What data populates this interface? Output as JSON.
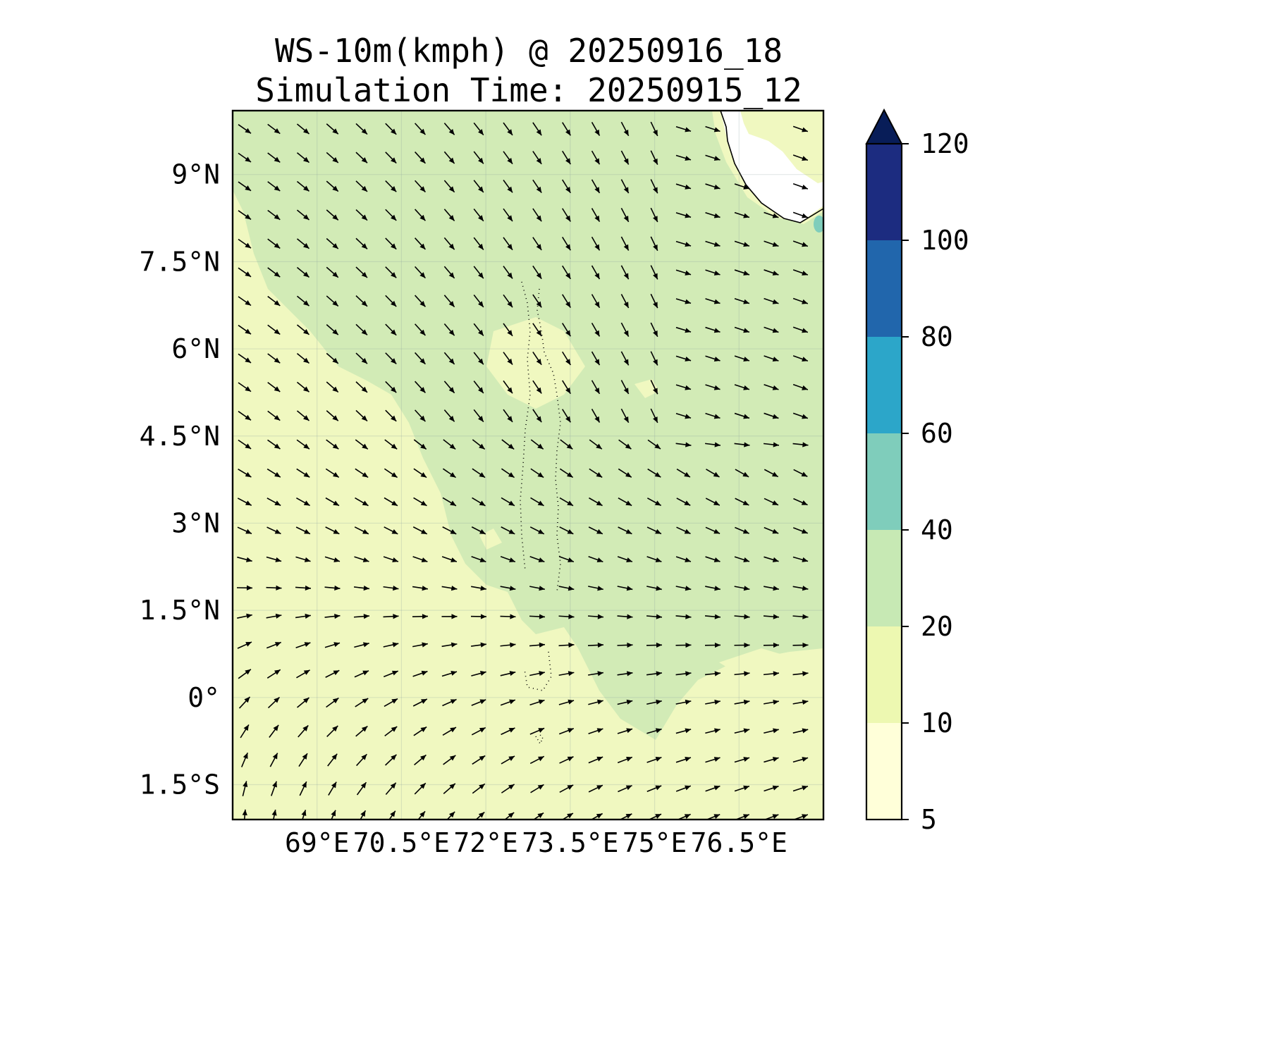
{
  "figure": {
    "title_line1": "WS-10m(kmph) @ 20250916_18",
    "title_line2": "Simulation Time: 20250915_12"
  },
  "map": {
    "lon_range": [
      67.5,
      78.0
    ],
    "lat_range": [
      -2.1,
      10.1
    ],
    "x_ticks": [
      {
        "value": 69.0,
        "label": "69°E"
      },
      {
        "value": 70.5,
        "label": "70.5°E"
      },
      {
        "value": 72.0,
        "label": "72°E"
      },
      {
        "value": 73.5,
        "label": "73.5°E"
      },
      {
        "value": 75.0,
        "label": "75°E"
      },
      {
        "value": 76.5,
        "label": "76.5°E"
      }
    ],
    "y_ticks": [
      {
        "value": 9.0,
        "label": "9°N"
      },
      {
        "value": 7.5,
        "label": "7.5°N"
      },
      {
        "value": 6.0,
        "label": "6°N"
      },
      {
        "value": 4.5,
        "label": "4.5°N"
      },
      {
        "value": 3.0,
        "label": "3°N"
      },
      {
        "value": 1.5,
        "label": "1.5°N"
      },
      {
        "value": 0.0,
        "label": "0°"
      },
      {
        "value": -1.5,
        "label": "1.5°S"
      }
    ],
    "gridlines": true,
    "vector_field": "wind arrows (direction)"
  },
  "colorbar": {
    "levels": [
      "5",
      "10",
      "20",
      "40",
      "60",
      "80",
      "100",
      "120"
    ],
    "colors": [
      "#ffffd9",
      "#edf8b1",
      "#c7e9b4",
      "#7fcdbb",
      "#2ca6c9",
      "#2166ac",
      "#1c2c80"
    ],
    "extend_color": "#081d58",
    "extend": "max"
  },
  "colors": {
    "field_light": "#f0f8c0",
    "field_mid": "#d2ebb6",
    "land": "#ffffff",
    "coast": "#000000"
  }
}
